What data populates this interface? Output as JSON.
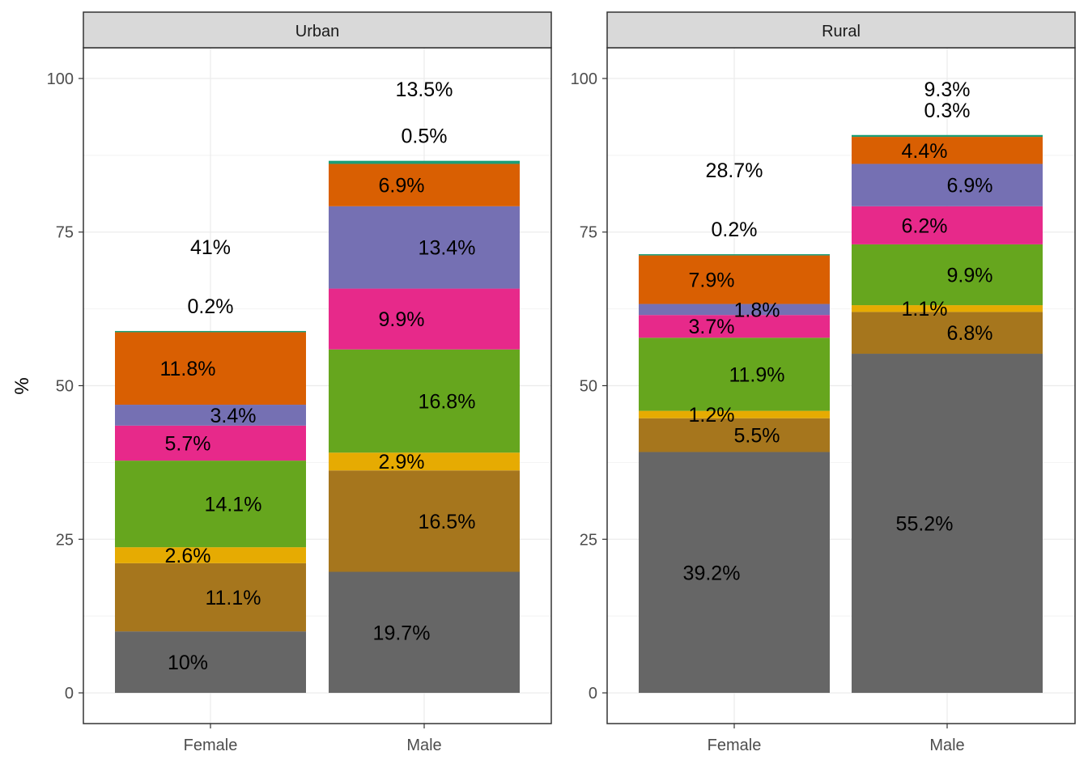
{
  "chart_data": {
    "type": "bar",
    "stacked": true,
    "ylabel": "%",
    "xlabel": "",
    "ylim": [
      -5,
      105
    ],
    "yticks": [
      0,
      25,
      50,
      75,
      100
    ],
    "grid": true,
    "categories": [
      "Female",
      "Male"
    ],
    "layer_colors": [
      "#666666",
      "#A6761D",
      "#E6AB02",
      "#66A61E",
      "#E7298A",
      "#7570B3",
      "#D95F02",
      "#1B9E77"
    ],
    "panels": [
      {
        "title": "Urban",
        "bars": [
          {
            "category": "Female",
            "values": [
              10,
              11.1,
              2.6,
              14.1,
              5.7,
              3.4,
              11.8,
              0.2
            ],
            "labels": [
              "10%",
              "11.1%",
              "2.6%",
              "14.1%",
              "5.7%",
              "3.4%",
              "11.8%",
              "0.2%"
            ],
            "top_label": "41%"
          },
          {
            "category": "Male",
            "values": [
              19.7,
              16.5,
              2.9,
              16.8,
              9.9,
              13.4,
              6.9,
              0.5
            ],
            "labels": [
              "19.7%",
              "16.5%",
              "2.9%",
              "16.8%",
              "9.9%",
              "13.4%",
              "6.9%",
              "0.5%"
            ],
            "top_label": "13.5%"
          }
        ]
      },
      {
        "title": "Rural",
        "bars": [
          {
            "category": "Female",
            "values": [
              39.2,
              5.5,
              1.2,
              11.9,
              3.7,
              1.8,
              7.9,
              0.2
            ],
            "labels": [
              "39.2%",
              "5.5%",
              "1.2%",
              "11.9%",
              "3.7%",
              "1.8%",
              "7.9%",
              "0.2%"
            ],
            "top_label": "28.7%"
          },
          {
            "category": "Male",
            "values": [
              55.2,
              6.8,
              1.1,
              9.9,
              6.2,
              6.9,
              4.4,
              0.3
            ],
            "labels": [
              "55.2%",
              "6.8%",
              "1.1%",
              "9.9%",
              "6.2%",
              "6.9%",
              "4.4%",
              "0.3%"
            ],
            "top_label": "9.3%"
          }
        ]
      }
    ]
  }
}
